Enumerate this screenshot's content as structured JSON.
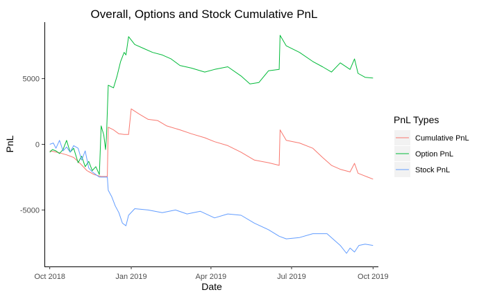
{
  "chart_data": {
    "type": "line",
    "title": "Overall, Options and Stock Cumulative PnL",
    "xlabel": "Date",
    "ylabel": "PnL",
    "xlim": [
      "2018-09-25",
      "2019-10-07"
    ],
    "ylim": [
      -9300,
      9300
    ],
    "x_ticks": [
      "2018-10-01",
      "2019-01-01",
      "2019-04-01",
      "2019-07-01",
      "2019-10-01"
    ],
    "x_tick_labels": [
      "Oct 2018",
      "Jan 2019",
      "Apr 2019",
      "Jul 2019",
      "Oct 2019"
    ],
    "y_ticks": [
      -5000,
      0,
      5000
    ],
    "y_tick_labels": [
      "-5000",
      "0",
      "5000"
    ],
    "grid": false,
    "legend": {
      "title": "PnL Types",
      "position": "right"
    },
    "series": [
      {
        "name": "Cumulative PnL",
        "color": "#F8766D",
        "points": [
          [
            "2018-10-01",
            -500
          ],
          [
            "2018-10-05",
            -550
          ],
          [
            "2018-10-12",
            -650
          ],
          [
            "2018-10-20",
            -800
          ],
          [
            "2018-10-28",
            -1000
          ],
          [
            "2018-11-05",
            -1500
          ],
          [
            "2018-11-12",
            -2000
          ],
          [
            "2018-11-20",
            -2300
          ],
          [
            "2018-11-28",
            -2450
          ],
          [
            "2018-12-05",
            -2450
          ],
          [
            "2018-12-06",
            1300
          ],
          [
            "2018-12-12",
            1100
          ],
          [
            "2018-12-18",
            800
          ],
          [
            "2018-12-24",
            750
          ],
          [
            "2018-12-29",
            750
          ],
          [
            "2019-01-01",
            2700
          ],
          [
            "2019-01-10",
            2300
          ],
          [
            "2019-01-20",
            1900
          ],
          [
            "2019-01-31",
            1800
          ],
          [
            "2019-02-10",
            1400
          ],
          [
            "2019-02-25",
            1100
          ],
          [
            "2019-03-10",
            800
          ],
          [
            "2019-03-25",
            500
          ],
          [
            "2019-04-05",
            200
          ],
          [
            "2019-04-20",
            -100
          ],
          [
            "2019-05-05",
            -600
          ],
          [
            "2019-05-20",
            -1200
          ],
          [
            "2019-06-05",
            -1400
          ],
          [
            "2019-06-17",
            -1600
          ],
          [
            "2019-06-18",
            1100
          ],
          [
            "2019-06-25",
            300
          ],
          [
            "2019-07-10",
            100
          ],
          [
            "2019-07-25",
            -300
          ],
          [
            "2019-08-05",
            -1000
          ],
          [
            "2019-08-15",
            -1600
          ],
          [
            "2019-08-25",
            -1900
          ],
          [
            "2019-09-05",
            -2100
          ],
          [
            "2019-09-10",
            -1450
          ],
          [
            "2019-09-14",
            -2200
          ],
          [
            "2019-09-25",
            -2500
          ],
          [
            "2019-10-01",
            -2650
          ]
        ]
      },
      {
        "name": "Option PnL",
        "color": "#00BA38",
        "points": [
          [
            "2018-10-01",
            -600
          ],
          [
            "2018-10-04",
            -400
          ],
          [
            "2018-10-08",
            -500
          ],
          [
            "2018-10-12",
            -700
          ],
          [
            "2018-10-16",
            -400
          ],
          [
            "2018-10-20",
            300
          ],
          [
            "2018-10-24",
            -600
          ],
          [
            "2018-10-28",
            -300
          ],
          [
            "2018-11-02",
            -1400
          ],
          [
            "2018-11-06",
            -900
          ],
          [
            "2018-11-10",
            -1700
          ],
          [
            "2018-11-14",
            -1300
          ],
          [
            "2018-11-18",
            -2000
          ],
          [
            "2018-11-22",
            -1700
          ],
          [
            "2018-11-26",
            -2300
          ],
          [
            "2018-11-28",
            1400
          ],
          [
            "2018-12-01",
            700
          ],
          [
            "2018-12-03",
            -400
          ],
          [
            "2018-12-04",
            500
          ],
          [
            "2018-12-06",
            4500
          ],
          [
            "2018-12-12",
            4300
          ],
          [
            "2018-12-16",
            5200
          ],
          [
            "2018-12-20",
            6300
          ],
          [
            "2018-12-24",
            7000
          ],
          [
            "2018-12-26",
            6800
          ],
          [
            "2018-12-29",
            8200
          ],
          [
            "2019-01-05",
            7600
          ],
          [
            "2019-01-15",
            7300
          ],
          [
            "2019-01-25",
            7000
          ],
          [
            "2019-02-05",
            6800
          ],
          [
            "2019-02-15",
            6500
          ],
          [
            "2019-02-25",
            6000
          ],
          [
            "2019-03-10",
            5800
          ],
          [
            "2019-03-25",
            5500
          ],
          [
            "2019-04-05",
            5700
          ],
          [
            "2019-04-20",
            5900
          ],
          [
            "2019-05-05",
            5200
          ],
          [
            "2019-05-15",
            4600
          ],
          [
            "2019-05-25",
            4700
          ],
          [
            "2019-06-05",
            5600
          ],
          [
            "2019-06-17",
            5700
          ],
          [
            "2019-06-18",
            8300
          ],
          [
            "2019-06-25",
            7500
          ],
          [
            "2019-07-10",
            7000
          ],
          [
            "2019-07-25",
            6300
          ],
          [
            "2019-08-05",
            5900
          ],
          [
            "2019-08-15",
            5500
          ],
          [
            "2019-08-25",
            6200
          ],
          [
            "2019-09-05",
            5700
          ],
          [
            "2019-09-10",
            6500
          ],
          [
            "2019-09-14",
            5400
          ],
          [
            "2019-09-22",
            5100
          ],
          [
            "2019-10-01",
            5050
          ]
        ]
      },
      {
        "name": "Stock PnL",
        "color": "#619CFF",
        "points": [
          [
            "2018-10-01",
            0
          ],
          [
            "2018-10-05",
            100
          ],
          [
            "2018-10-08",
            -300
          ],
          [
            "2018-10-12",
            300
          ],
          [
            "2018-10-16",
            -500
          ],
          [
            "2018-10-20",
            -200
          ],
          [
            "2018-10-24",
            -600
          ],
          [
            "2018-10-28",
            -100
          ],
          [
            "2018-11-02",
            -300
          ],
          [
            "2018-11-06",
            -1200
          ],
          [
            "2018-11-10",
            -500
          ],
          [
            "2018-11-14",
            -1800
          ],
          [
            "2018-11-18",
            -2100
          ],
          [
            "2018-11-22",
            -2300
          ],
          [
            "2018-11-26",
            -2500
          ],
          [
            "2018-12-05",
            -2500
          ],
          [
            "2018-12-06",
            -3500
          ],
          [
            "2018-12-10",
            -4000
          ],
          [
            "2018-12-14",
            -4700
          ],
          [
            "2018-12-18",
            -5200
          ],
          [
            "2018-12-22",
            -6000
          ],
          [
            "2018-12-26",
            -6200
          ],
          [
            "2018-12-29",
            -5400
          ],
          [
            "2019-01-05",
            -4900
          ],
          [
            "2019-01-20",
            -5000
          ],
          [
            "2019-02-05",
            -5200
          ],
          [
            "2019-02-20",
            -5000
          ],
          [
            "2019-03-05",
            -5300
          ],
          [
            "2019-03-20",
            -5100
          ],
          [
            "2019-04-05",
            -5600
          ],
          [
            "2019-04-20",
            -5300
          ],
          [
            "2019-05-05",
            -5400
          ],
          [
            "2019-05-20",
            -6000
          ],
          [
            "2019-06-05",
            -6500
          ],
          [
            "2019-06-17",
            -7000
          ],
          [
            "2019-06-25",
            -7200
          ],
          [
            "2019-07-10",
            -7100
          ],
          [
            "2019-07-25",
            -6800
          ],
          [
            "2019-08-10",
            -6800
          ],
          [
            "2019-08-25",
            -7700
          ],
          [
            "2019-09-01",
            -8300
          ],
          [
            "2019-09-05",
            -7900
          ],
          [
            "2019-09-10",
            -8200
          ],
          [
            "2019-09-15",
            -7700
          ],
          [
            "2019-09-22",
            -7600
          ],
          [
            "2019-10-01",
            -7700
          ]
        ]
      }
    ]
  }
}
